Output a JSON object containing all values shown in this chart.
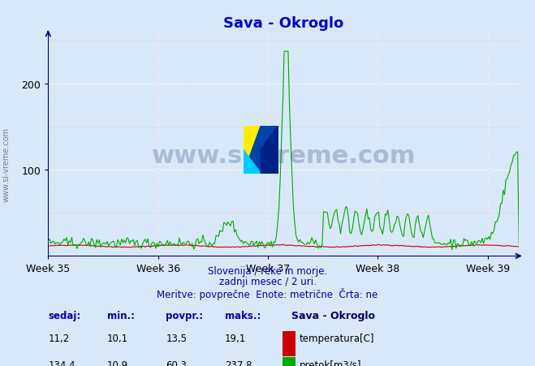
{
  "title": "Sava - Okroglo",
  "title_color": "#0000cc",
  "bg_color": "#d8e8f8",
  "plot_bg_color": "#d8e8f8",
  "grid_color": "#ffffff",
  "axis_color": "#000080",
  "text_color": "#0000aa",
  "subtitle_lines": [
    "Slovenija / reke in morje.",
    "zadnji mesec / 2 uri.",
    "Meritve: povprečne  Enote: metrične  Črta: ne"
  ],
  "xlabel_weeks": [
    "Week 35",
    "Week 36",
    "Week 37",
    "Week 38",
    "Week 39"
  ],
  "ylim": [
    0,
    260
  ],
  "xlim": [
    0,
    360
  ],
  "week_positions": [
    0,
    84,
    168,
    252,
    336
  ],
  "temp_color": "#cc0000",
  "flow_color": "#00aa00",
  "watermark_text": "www.si-vreme.com",
  "watermark_color": "#1a3a6a",
  "watermark_alpha": 0.25,
  "stats_headers": [
    "sedaj:",
    "min.:",
    "povpr.:",
    "maks.:"
  ],
  "stats_temp": [
    "11,2",
    "10,1",
    "13,5",
    "19,1"
  ],
  "stats_flow": [
    "134,4",
    "10,9",
    "60,3",
    "237,8"
  ],
  "legend_title": "Sava - Okroglo",
  "legend_temp_label": "temperatura[C]",
  "legend_flow_label": "pretok[m3/s]"
}
